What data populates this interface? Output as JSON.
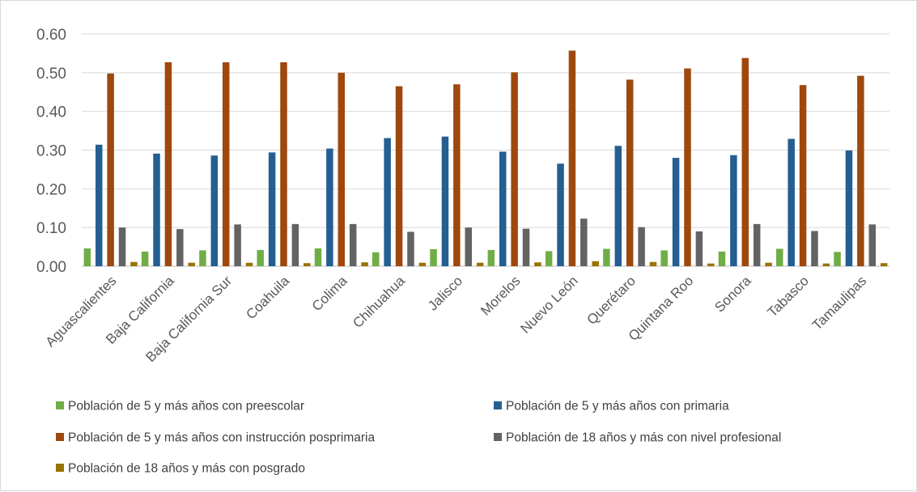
{
  "chart_data": {
    "type": "bar",
    "title": "",
    "xlabel": "",
    "ylabel": "",
    "ylim": [
      0,
      0.6
    ],
    "yticks": [
      "0.00",
      "0.10",
      "0.20",
      "0.30",
      "0.40",
      "0.50",
      "0.60"
    ],
    "grid": true,
    "legend_position": "bottom",
    "categories": [
      "Aguascalientes",
      "Baja California",
      "Baja California Sur",
      "Coahuila",
      "Colima",
      "Chihuahua",
      "Jalisco",
      "Morelos",
      "Nuevo León",
      "Querétaro",
      "Quintana Roo",
      "Sonora",
      "Tabasco",
      "Tamaulipas"
    ],
    "series": [
      {
        "name": "Población de 5 y más años con preescolar",
        "color": "#70ad47",
        "values": [
          0.046,
          0.038,
          0.041,
          0.042,
          0.046,
          0.036,
          0.044,
          0.042,
          0.039,
          0.045,
          0.041,
          0.038,
          0.045,
          0.037
        ]
      },
      {
        "name": "Población de 5 y más años con primaria",
        "color": "#255e91",
        "values": [
          0.314,
          0.291,
          0.286,
          0.294,
          0.304,
          0.331,
          0.335,
          0.296,
          0.265,
          0.311,
          0.28,
          0.287,
          0.329,
          0.299
        ]
      },
      {
        "name": "Población de 5 y más años con instrucción posprimaria",
        "color": "#9e480e",
        "values": [
          0.498,
          0.527,
          0.527,
          0.527,
          0.5,
          0.465,
          0.47,
          0.501,
          0.557,
          0.482,
          0.511,
          0.538,
          0.468,
          0.492
        ]
      },
      {
        "name": "Población de 18 años y más con nivel profesional",
        "color": "#636363",
        "values": [
          0.1,
          0.096,
          0.108,
          0.109,
          0.109,
          0.089,
          0.1,
          0.097,
          0.123,
          0.101,
          0.09,
          0.109,
          0.091,
          0.108
        ]
      },
      {
        "name": "Población de 18 años y más con posgrado",
        "color": "#997300",
        "values": [
          0.011,
          0.009,
          0.009,
          0.008,
          0.01,
          0.009,
          0.009,
          0.01,
          0.013,
          0.011,
          0.007,
          0.009,
          0.007,
          0.008
        ]
      }
    ]
  }
}
